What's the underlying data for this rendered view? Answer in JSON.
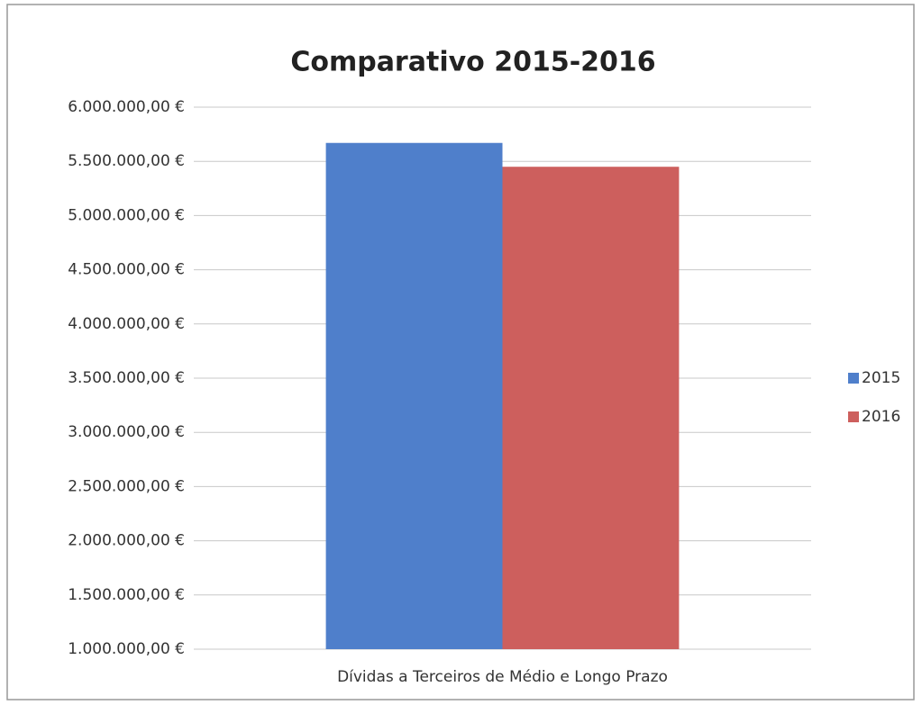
{
  "chart_data": {
    "type": "bar",
    "title": "Comparativo 2015-2016",
    "categories": [
      "Dívidas a Terceiros de Médio e Longo Prazo"
    ],
    "series": [
      {
        "name": "2015",
        "color": "#4f7fcb",
        "values": [
          5670000
        ]
      },
      {
        "name": "2016",
        "color": "#cd5f5d",
        "values": [
          5450000
        ]
      }
    ],
    "ylim": [
      1000000,
      6000000
    ],
    "yticks": [
      {
        "value": 1000000,
        "label": "1.000.000,00 €"
      },
      {
        "value": 1500000,
        "label": "1.500.000,00 €"
      },
      {
        "value": 2000000,
        "label": "2.000.000,00 €"
      },
      {
        "value": 2500000,
        "label": "2.500.000,00 €"
      },
      {
        "value": 3000000,
        "label": "3.000.000,00 €"
      },
      {
        "value": 3500000,
        "label": "3.500.000,00 €"
      },
      {
        "value": 4000000,
        "label": "4.000.000,00 €"
      },
      {
        "value": 4500000,
        "label": "4.500.000,00 €"
      },
      {
        "value": 5000000,
        "label": "5.000.000,00 €"
      },
      {
        "value": 5500000,
        "label": "5.500.000,00 €"
      },
      {
        "value": 6000000,
        "label": "6.000.000,00 €"
      }
    ],
    "grid": true,
    "legend": "right"
  }
}
